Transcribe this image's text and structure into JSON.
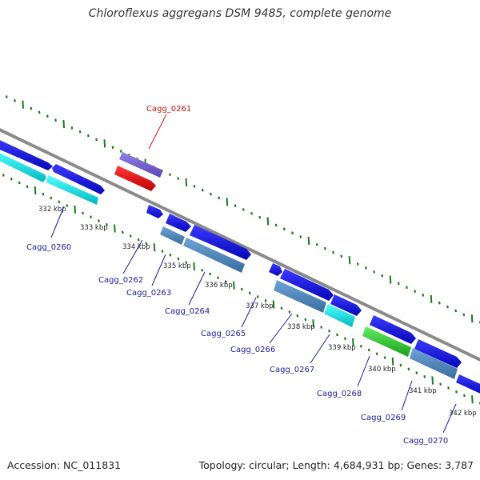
{
  "title": "Chloroflexus aggregans DSM 9485, complete genome",
  "accession": "Accession: NC_011831",
  "summary": "Topology: circular; Length: 4,684,931 bp; Genes: 3,787",
  "colors": {
    "backbone": "#8a8a8a",
    "ticks": "#1a7a1a",
    "gene_blue": "#1010e0",
    "gene_purple": "#7a66d6",
    "gene_red": "#ee1010",
    "gene_cyan": "#10dde0",
    "gene_steel": "#5088c0",
    "gene_green": "#30c030",
    "label_blue": "#1a1aa0",
    "label_red": "#cc1111"
  },
  "scale_labels": [
    "332 kbp",
    "333 kbp",
    "334 kbp",
    "335 kbp",
    "336 kbp",
    "337 kbp",
    "338 kbp",
    "339 kbp",
    "340 kbp",
    "341 kbp",
    "342 kbp"
  ],
  "gene_labels": [
    {
      "name": "Cagg_0260",
      "highlight": false
    },
    {
      "name": "Cagg_0261",
      "highlight": true
    },
    {
      "name": "Cagg_0262",
      "highlight": false
    },
    {
      "name": "Cagg_0263",
      "highlight": false
    },
    {
      "name": "Cagg_0264",
      "highlight": false
    },
    {
      "name": "Cagg_0265",
      "highlight": false
    },
    {
      "name": "Cagg_0266",
      "highlight": false
    },
    {
      "name": "Cagg_0267",
      "highlight": false
    },
    {
      "name": "Cagg_0268",
      "highlight": false
    },
    {
      "name": "Cagg_0269",
      "highlight": false
    },
    {
      "name": "Cagg_0270",
      "highlight": false
    }
  ]
}
